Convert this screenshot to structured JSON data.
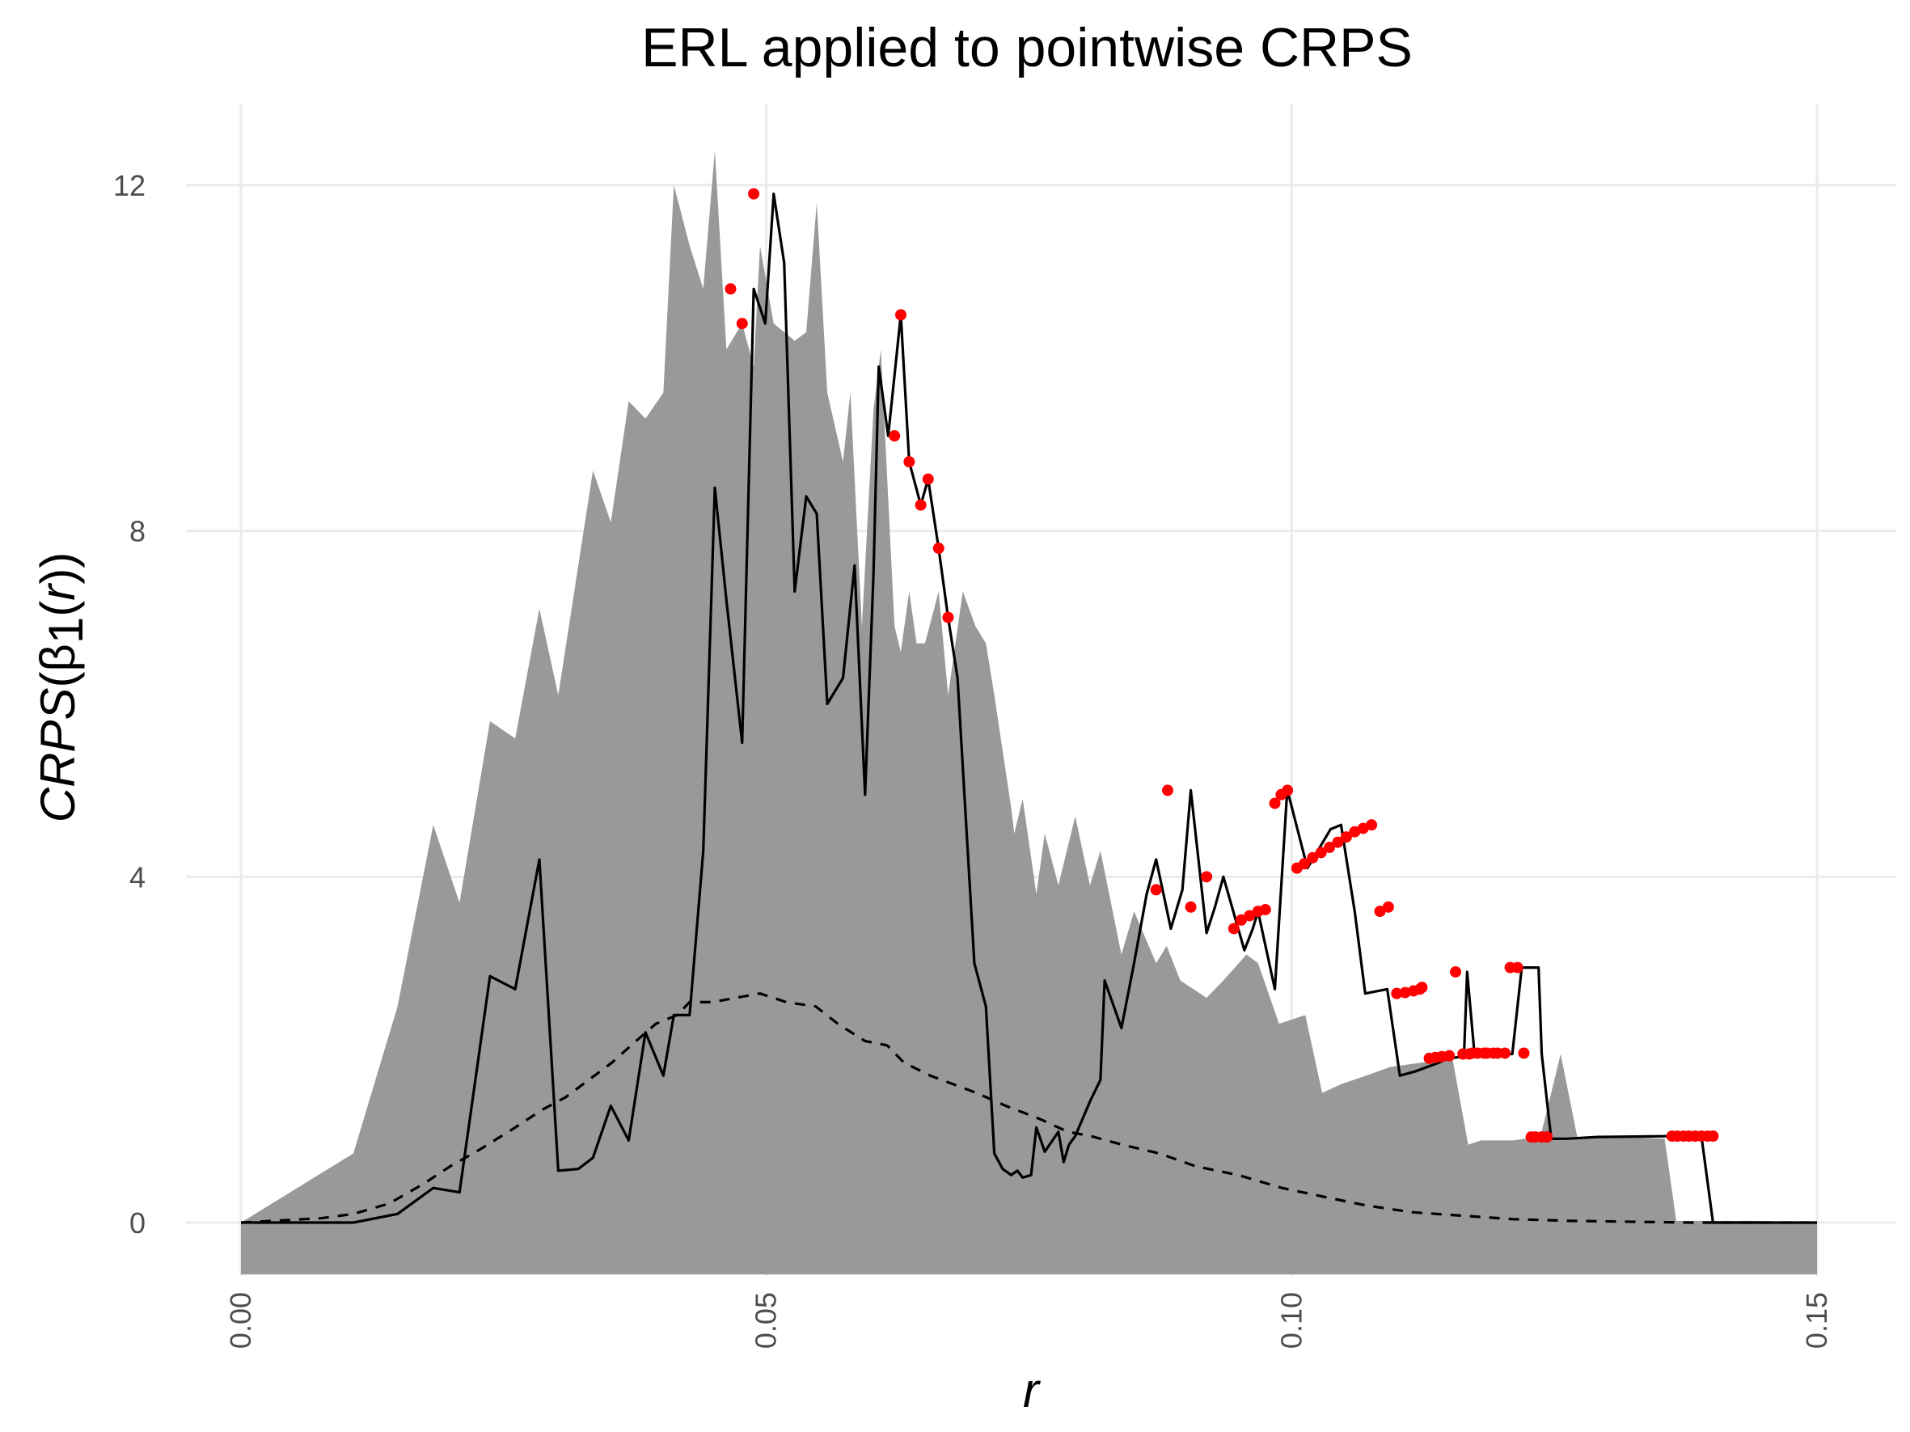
{
  "chart_data": {
    "type": "line",
    "title": "ERL applied to pointwise CRPS",
    "xlabel": "r",
    "ylabel": {
      "italic": "CRPS",
      "paren_open": "(",
      "beta": "β",
      "sub": "1",
      "open2": "(",
      "arg": "r",
      "close": "))"
    },
    "xlim": [
      0,
      0.15
    ],
    "ylim": [
      -0.6,
      12.7
    ],
    "x_ticks": [
      0,
      0.05,
      0.1,
      0.15
    ],
    "x_tick_labels": [
      "0.00",
      "0.05",
      "0.10",
      "0.15"
    ],
    "y_ticks": [
      0,
      4,
      8,
      12
    ],
    "y_tick_labels": [
      "0",
      "4",
      "8",
      "12"
    ],
    "grid": true,
    "legend": "none",
    "colors": {
      "band": "#999999",
      "line": "#000000",
      "dashed": "#000000",
      "points": "#ff0000",
      "grid": "#ebebeb"
    },
    "series": [
      {
        "role": "envelope-band",
        "x": [
          0.0,
          0.0107,
          0.0149,
          0.0183,
          0.0208,
          0.0237,
          0.0261,
          0.0284,
          0.0302,
          0.0335,
          0.0352,
          0.0369,
          0.0385,
          0.0402,
          0.0412,
          0.0427,
          0.044,
          0.0451,
          0.0462,
          0.0477,
          0.0488,
          0.0494,
          0.0507,
          0.0527,
          0.0538,
          0.0548,
          0.0558,
          0.0573,
          0.058,
          0.0591,
          0.0602,
          0.0609,
          0.0622,
          0.0628,
          0.0636,
          0.0643,
          0.0651,
          0.0664,
          0.0673,
          0.0687,
          0.0699,
          0.0709,
          0.0717,
          0.0733,
          0.0736,
          0.0744,
          0.0757,
          0.0765,
          0.0778,
          0.0794,
          0.0808,
          0.0818,
          0.0838,
          0.085,
          0.0871,
          0.0881,
          0.0894,
          0.0919,
          0.0935,
          0.0957,
          0.0968,
          0.0988,
          0.1013,
          0.1029,
          0.1047,
          0.1071,
          0.1094,
          0.1153,
          0.1168,
          0.118,
          0.1211,
          0.1237,
          0.1256,
          0.1272,
          0.13,
          0.1355,
          0.1366,
          0.1391,
          0.1414,
          0.1441,
          0.15
        ],
        "upper": [
          0.0,
          0.8,
          2.5,
          4.6,
          3.7,
          5.8,
          5.6,
          7.1,
          6.1,
          8.7,
          8.1,
          9.5,
          9.3,
          9.6,
          12.0,
          11.3,
          10.8,
          12.4,
          10.1,
          10.4,
          9.9,
          11.3,
          10.4,
          10.2,
          10.3,
          11.8,
          9.6,
          8.8,
          9.6,
          6.9,
          9.4,
          10.1,
          6.9,
          6.6,
          7.3,
          6.7,
          6.7,
          7.3,
          6.1,
          7.3,
          6.9,
          6.7,
          6.1,
          4.8,
          4.5,
          4.9,
          3.8,
          4.5,
          3.9,
          4.7,
          3.9,
          4.3,
          3.1,
          3.6,
          3.0,
          3.2,
          2.8,
          2.6,
          2.8,
          3.1,
          3.0,
          2.3,
          2.4,
          1.5,
          1.6,
          1.7,
          1.8,
          1.9,
          0.9,
          0.95,
          0.95,
          1.0,
          1.95,
          0.98,
          1.0,
          0.97,
          0.02,
          0.02,
          0.02,
          0.02,
          0.0
        ],
        "lower_fill_to": -0.6
      },
      {
        "role": "point-estimate",
        "x": [
          0.0,
          0.0107,
          0.0149,
          0.0183,
          0.0208,
          0.0237,
          0.0261,
          0.0284,
          0.0302,
          0.0321,
          0.0335,
          0.0352,
          0.0369,
          0.0385,
          0.0402,
          0.0412,
          0.0427,
          0.044,
          0.0451,
          0.0462,
          0.0477,
          0.0488,
          0.0499,
          0.0507,
          0.0517,
          0.0527,
          0.0538,
          0.0548,
          0.0558,
          0.0573,
          0.0584,
          0.0594,
          0.0602,
          0.0607,
          0.0616,
          0.0628,
          0.0636,
          0.0647,
          0.0654,
          0.0664,
          0.0673,
          0.0682,
          0.0698,
          0.0709,
          0.0717,
          0.0725,
          0.0733,
          0.0739,
          0.0744,
          0.0752,
          0.0757,
          0.0765,
          0.0778,
          0.0783,
          0.0788,
          0.0794,
          0.0808,
          0.0818,
          0.0822,
          0.0838,
          0.085,
          0.0862,
          0.0871,
          0.0885,
          0.0896,
          0.0904,
          0.0919,
          0.0927,
          0.0935,
          0.0955,
          0.0963,
          0.0968,
          0.0984,
          0.0995,
          0.0996,
          0.1015,
          0.1037,
          0.1047,
          0.106,
          0.107,
          0.1091,
          0.1103,
          0.1118,
          0.114,
          0.1149,
          0.1164,
          0.1167,
          0.1174,
          0.121,
          0.1219,
          0.1235,
          0.1238,
          0.1247,
          0.1262,
          0.1291,
          0.1362,
          0.139,
          0.1401,
          0.15
        ],
        "y": [
          0.0,
          0.0,
          0.1,
          0.4,
          0.35,
          2.85,
          2.7,
          4.2,
          0.6,
          0.62,
          0.75,
          1.35,
          0.95,
          2.2,
          1.7,
          2.4,
          2.4,
          4.3,
          8.5,
          7.2,
          5.55,
          10.8,
          10.4,
          11.9,
          11.1,
          7.3,
          8.4,
          8.2,
          6.0,
          6.3,
          7.6,
          4.95,
          7.5,
          9.9,
          9.1,
          10.5,
          8.8,
          8.3,
          8.6,
          7.8,
          7.0,
          6.3,
          3.0,
          2.5,
          0.8,
          0.62,
          0.55,
          0.6,
          0.52,
          0.55,
          1.1,
          0.82,
          1.05,
          0.7,
          0.9,
          1.0,
          1.4,
          1.65,
          2.8,
          2.25,
          3.0,
          3.8,
          4.2,
          3.4,
          3.85,
          5.0,
          3.35,
          3.65,
          4.0,
          3.15,
          3.4,
          3.6,
          2.7,
          4.85,
          5.0,
          4.1,
          4.55,
          4.6,
          3.6,
          2.65,
          2.7,
          1.7,
          1.75,
          1.85,
          1.9,
          1.92,
          2.9,
          1.95,
          1.95,
          2.95,
          2.95,
          1.95,
          0.97,
          0.97,
          0.99,
          1.0,
          1.0,
          0.0,
          0.0
        ]
      },
      {
        "role": "dashed-reference",
        "x": [
          0.0,
          0.0076,
          0.0107,
          0.0141,
          0.0174,
          0.0199,
          0.0228,
          0.0261,
          0.0286,
          0.0309,
          0.0331,
          0.0353,
          0.0376,
          0.0395,
          0.0415,
          0.0427,
          0.0449,
          0.0471,
          0.0494,
          0.0519,
          0.0547,
          0.0568,
          0.0594,
          0.0615,
          0.0631,
          0.0656,
          0.0678,
          0.07,
          0.0728,
          0.076,
          0.0787,
          0.0809,
          0.0839,
          0.0874,
          0.0909,
          0.0949,
          0.0991,
          0.103,
          0.107,
          0.1114,
          0.1162,
          0.121,
          0.1265,
          0.132,
          0.138,
          0.1437,
          0.15
        ],
        "y": [
          0.0,
          0.05,
          0.1,
          0.22,
          0.45,
          0.65,
          0.85,
          1.1,
          1.3,
          1.45,
          1.65,
          1.85,
          2.1,
          2.3,
          2.4,
          2.55,
          2.55,
          2.6,
          2.65,
          2.55,
          2.5,
          2.3,
          2.1,
          2.05,
          1.85,
          1.7,
          1.6,
          1.5,
          1.35,
          1.2,
          1.05,
          1.0,
          0.9,
          0.8,
          0.65,
          0.55,
          0.4,
          0.3,
          0.2,
          0.12,
          0.08,
          0.04,
          0.02,
          0.01,
          0.0,
          0.0,
          0.0
        ]
      },
      {
        "role": "exceedance-points",
        "x": [
          0.0466,
          0.0477,
          0.0488,
          0.0622,
          0.0628,
          0.0636,
          0.0647,
          0.0654,
          0.0664,
          0.0673,
          0.0871,
          0.0882,
          0.0904,
          0.0919,
          0.0945,
          0.0952,
          0.096,
          0.0968,
          0.0975,
          0.0984,
          0.099,
          0.0996,
          0.1005,
          0.1012,
          0.102,
          0.1028,
          0.1036,
          0.1044,
          0.1052,
          0.106,
          0.1068,
          0.1076,
          0.1084,
          0.1092,
          0.11,
          0.1108,
          0.1116,
          0.1122,
          0.1124,
          0.1131,
          0.1137,
          0.1143,
          0.115,
          0.1156,
          0.1163,
          0.1169,
          0.1172,
          0.1177,
          0.1183,
          0.1186,
          0.1192,
          0.1196,
          0.1203,
          0.1208,
          0.1215,
          0.1221,
          0.1228,
          0.1232,
          0.1238,
          0.1243,
          0.1362,
          0.1367,
          0.1373,
          0.1378,
          0.1384,
          0.139,
          0.1396,
          0.1401
        ],
        "y": [
          10.8,
          10.4,
          11.9,
          9.1,
          10.5,
          8.8,
          8.3,
          8.6,
          7.8,
          7.0,
          3.85,
          5.0,
          3.65,
          4.0,
          3.4,
          3.5,
          3.55,
          3.6,
          3.62,
          4.85,
          4.95,
          5.0,
          4.1,
          4.15,
          4.22,
          4.28,
          4.34,
          4.4,
          4.46,
          4.52,
          4.56,
          4.6,
          3.6,
          3.65,
          2.65,
          2.66,
          2.68,
          2.7,
          2.72,
          1.9,
          1.91,
          1.92,
          1.93,
          2.9,
          1.95,
          1.95,
          1.96,
          1.96,
          1.96,
          1.96,
          1.96,
          1.96,
          1.96,
          2.95,
          2.95,
          1.96,
          0.99,
          0.99,
          0.99,
          0.99,
          1.0,
          1.0,
          1.0,
          1.0,
          1.0,
          1.0,
          1.0,
          1.0
        ]
      }
    ]
  }
}
